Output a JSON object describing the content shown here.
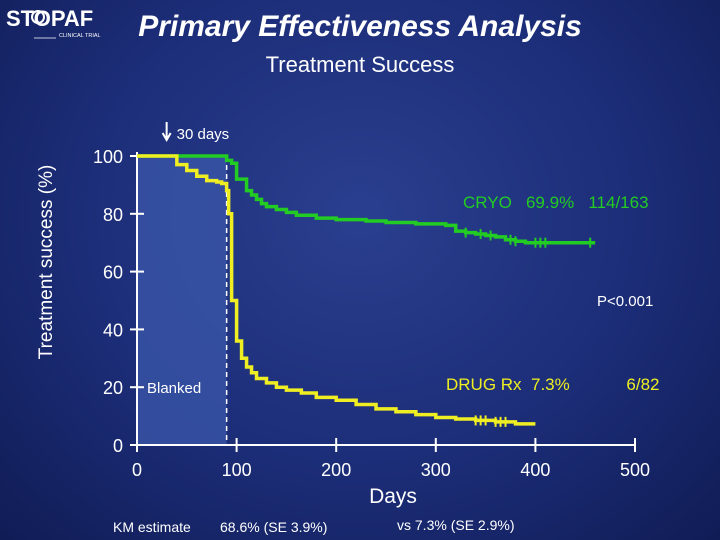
{
  "logo": {
    "brand": "STOPAF",
    "subtitle": "CLINICAL TRIAL"
  },
  "colors": {
    "title": "#ffffff",
    "subtitle": "#ffffff",
    "cryo": "#22cc22",
    "drug": "#eeee22",
    "blanked_region": "#3a55a8",
    "axis": "#ffffff",
    "text": "#ffffff"
  },
  "chart_data": {
    "type": "line",
    "title": "Primary Effectiveness Analysis",
    "subtitle": "Treatment Success",
    "xlabel": "Days",
    "ylabel": "Treatment success (%)",
    "xlim": [
      0,
      500
    ],
    "ylim": [
      0,
      100
    ],
    "xticks": [
      0,
      100,
      200,
      300,
      400,
      500
    ],
    "yticks": [
      0,
      20,
      40,
      60,
      80,
      100
    ],
    "grid": false,
    "blanked_region": {
      "x_start": 0,
      "x_end": 90,
      "label": "Blanked"
    },
    "marker_30_days": {
      "x": 90,
      "label": "30 days"
    },
    "series": [
      {
        "name": "CRYO",
        "label": "CRYO   69.9%   114/163",
        "color": "#22cc22",
        "x": [
          0,
          90,
          90,
          95,
          100,
          110,
          115,
          120,
          125,
          130,
          140,
          150,
          160,
          180,
          200,
          230,
          250,
          280,
          310,
          320,
          330,
          340,
          350,
          360,
          370,
          380,
          390,
          400,
          420,
          440,
          460
        ],
        "y": [
          100,
          100,
          98.5,
          97.5,
          92,
          88,
          86.5,
          85,
          83.5,
          82.5,
          81.5,
          80.5,
          79.5,
          78.5,
          78,
          77.5,
          77,
          76.5,
          76,
          74,
          73.5,
          73,
          72.5,
          72,
          71,
          70.5,
          70,
          70,
          70,
          70,
          70
        ]
      },
      {
        "name": "DRUG Rx",
        "label": "DRUG Rx  7.3%            6/82",
        "color": "#eeee22",
        "x": [
          0,
          30,
          40,
          50,
          60,
          70,
          80,
          85,
          90,
          92,
          95,
          100,
          105,
          110,
          115,
          120,
          130,
          140,
          150,
          165,
          180,
          200,
          220,
          240,
          260,
          280,
          300,
          320,
          340,
          360,
          380,
          400
        ],
        "y": [
          100,
          100,
          97,
          95,
          93,
          91.5,
          91,
          90.5,
          88,
          80,
          50,
          36,
          30,
          27,
          25,
          23,
          21.5,
          20,
          19,
          18,
          16.5,
          15.5,
          14,
          12.5,
          11.5,
          10.5,
          9.5,
          9,
          8.5,
          8,
          7.3,
          7.3
        ]
      }
    ],
    "annotations": {
      "p_value": "P<0.001",
      "km_estimate_label": "KM estimate",
      "cryo_km": "68.6% (SE 3.9%)",
      "drug_km": "vs 7.3% (SE 2.9%)"
    }
  }
}
